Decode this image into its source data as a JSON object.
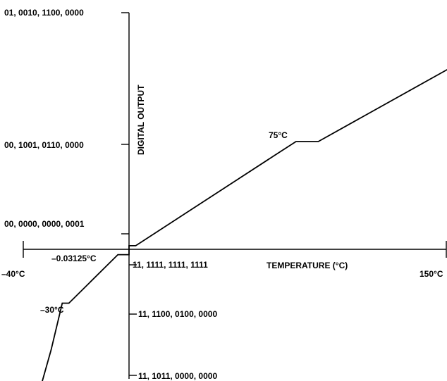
{
  "chart_data": {
    "type": "line",
    "xlabel": "TEMPERATURE (°C)",
    "ylabel": "DIGITAL OUTPUT",
    "x_endpoint_labels": [
      "–40°C",
      "150°C"
    ],
    "y_tick_labels_positive": [
      "01, 0010, 1100, 0000",
      "00, 1001, 0110, 0000",
      "00, 0000, 0000, 0001"
    ],
    "y_tick_labels_negative": [
      "11, 1111, 1111, 1111",
      "11, 1100, 0100, 0000",
      "11, 1011, 0000, 0000"
    ],
    "annotations": [
      "75°C",
      "–30°C",
      "–0.03125°C"
    ],
    "series": [
      {
        "x": [
          -40,
          -35,
          -30,
          -27,
          -5,
          0,
          0,
          3,
          65,
          75,
          85,
          150
        ],
        "y": [
          -78,
          -56,
          -30,
          -30,
          -3,
          -3,
          2,
          2,
          52,
          60,
          60,
          105
        ]
      }
    ]
  }
}
